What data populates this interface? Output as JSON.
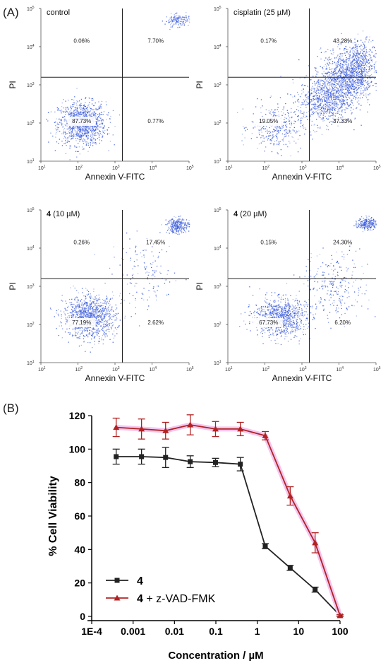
{
  "figure": {
    "panel_a_label": "(A)",
    "panel_b_label": "(B)"
  },
  "flow": {
    "xlabel": "Annexin V-FITC",
    "ylabel": "PI",
    "x_ticks": [
      "10^1",
      "10^2",
      "10^3",
      "10^4",
      "10^5"
    ],
    "y_ticks": [
      "10^1",
      "10^2",
      "10^3",
      "10^4",
      "10^5"
    ],
    "dot_color": "#2b4fd6",
    "plots": [
      {
        "title_bold": "",
        "title_rest": "control",
        "quadrants": {
          "ul": "0.06%",
          "ur": "7.70%",
          "ll": "87.73%",
          "lr": "0.77%"
        }
      },
      {
        "title_bold": "",
        "title_rest": "cisplatin (25 µM)",
        "quadrants": {
          "ul": "0.17%",
          "ur": "43.28%",
          "ll": "19.05%",
          "lr": "37.33%"
        }
      },
      {
        "title_bold": "4",
        "title_rest": " (10 µM)",
        "quadrants": {
          "ul": "0.26%",
          "ur": "17.45%",
          "ll": "77.19%",
          "lr": "2.62%"
        }
      },
      {
        "title_bold": "4",
        "title_rest": " (20 µM)",
        "quadrants": {
          "ul": "0.15%",
          "ur": "24.30%",
          "ll": "67.73%",
          "lr": "6.20%"
        }
      }
    ]
  },
  "chart_data": {
    "type": "line",
    "xlabel": "Concentration / µM",
    "ylabel": "% Cell Viability",
    "x_scale": "log",
    "xlim": [
      0.0001,
      100
    ],
    "ylim": [
      0,
      120
    ],
    "x_tick_labels": [
      "1E-4",
      "0.001",
      "0.01",
      "0.1",
      "1",
      "10",
      "100"
    ],
    "y_tick_labels": [
      "0",
      "20",
      "40",
      "60",
      "80",
      "100",
      "120"
    ],
    "legend_position": "bottom-left",
    "series": [
      {
        "name_bold": "4",
        "name_rest": "",
        "color": "#222222",
        "marker": "square",
        "x": [
          0.00039,
          0.0016,
          0.0061,
          0.024,
          0.098,
          0.39,
          1.56,
          6.25,
          25,
          100
        ],
        "y": [
          95.5,
          95.5,
          95.0,
          92.5,
          92.0,
          91.0,
          42.0,
          29.0,
          16.0,
          0.5
        ],
        "err": [
          4.5,
          4.5,
          6.0,
          3.5,
          2.5,
          4.0,
          1.5,
          1.5,
          1.5,
          0.5
        ]
      },
      {
        "name_bold": "4",
        "name_rest": " + z-VAD-FMK",
        "color": "#b22222",
        "marker": "triangle",
        "x": [
          0.00039,
          0.0016,
          0.0061,
          0.024,
          0.098,
          0.39,
          1.56,
          6.25,
          25,
          100
        ],
        "y": [
          113.0,
          112.0,
          111.0,
          114.5,
          112.0,
          112.0,
          108.0,
          72.0,
          44.0,
          0.5
        ],
        "err": [
          5.5,
          6.0,
          5.0,
          6.0,
          4.5,
          4.0,
          2.5,
          5.5,
          6.0,
          0.5
        ]
      }
    ]
  }
}
